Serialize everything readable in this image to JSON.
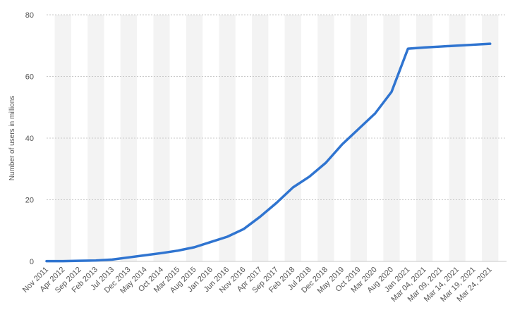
{
  "chart_data": {
    "type": "line",
    "y_label": "Number of users in millions",
    "categories": [
      "Nov 2011",
      "Apr 2012",
      "Sep 2012",
      "Feb 2013",
      "Jul 2013",
      "Dec 2013",
      "May 2014",
      "Oct 2014",
      "Mar 2015",
      "Aug 2015",
      "Jan 2016",
      "Jun 2016",
      "Nov 2016",
      "Apr 2017",
      "Sep 2017",
      "Feb 2018",
      "Jul 2018",
      "Dec 2018",
      "May 2019",
      "Oct 2019",
      "Mar 2020",
      "Aug 2020",
      "Jan 2021",
      "Mar 04, 2021",
      "Mar 09, 2021",
      "Mar 14, 2021",
      "Mar 19, 2021",
      "Mar 24, 2021"
    ],
    "series": [
      {
        "color": "#2f74d0",
        "values": [
          0.1,
          0.1,
          0.2,
          0.3,
          0.6,
          1.3,
          2.0,
          2.7,
          3.5,
          4.6,
          6.3,
          8.0,
          10.5,
          14.5,
          19,
          24,
          27.5,
          32,
          38,
          43,
          48,
          55,
          69,
          69.4,
          69.7,
          70.0,
          70.3,
          70.6
        ]
      }
    ],
    "ylim": [
      0,
      80
    ],
    "yticks": [
      0,
      20,
      40,
      60,
      80
    ],
    "grid": true,
    "stripes": true
  }
}
